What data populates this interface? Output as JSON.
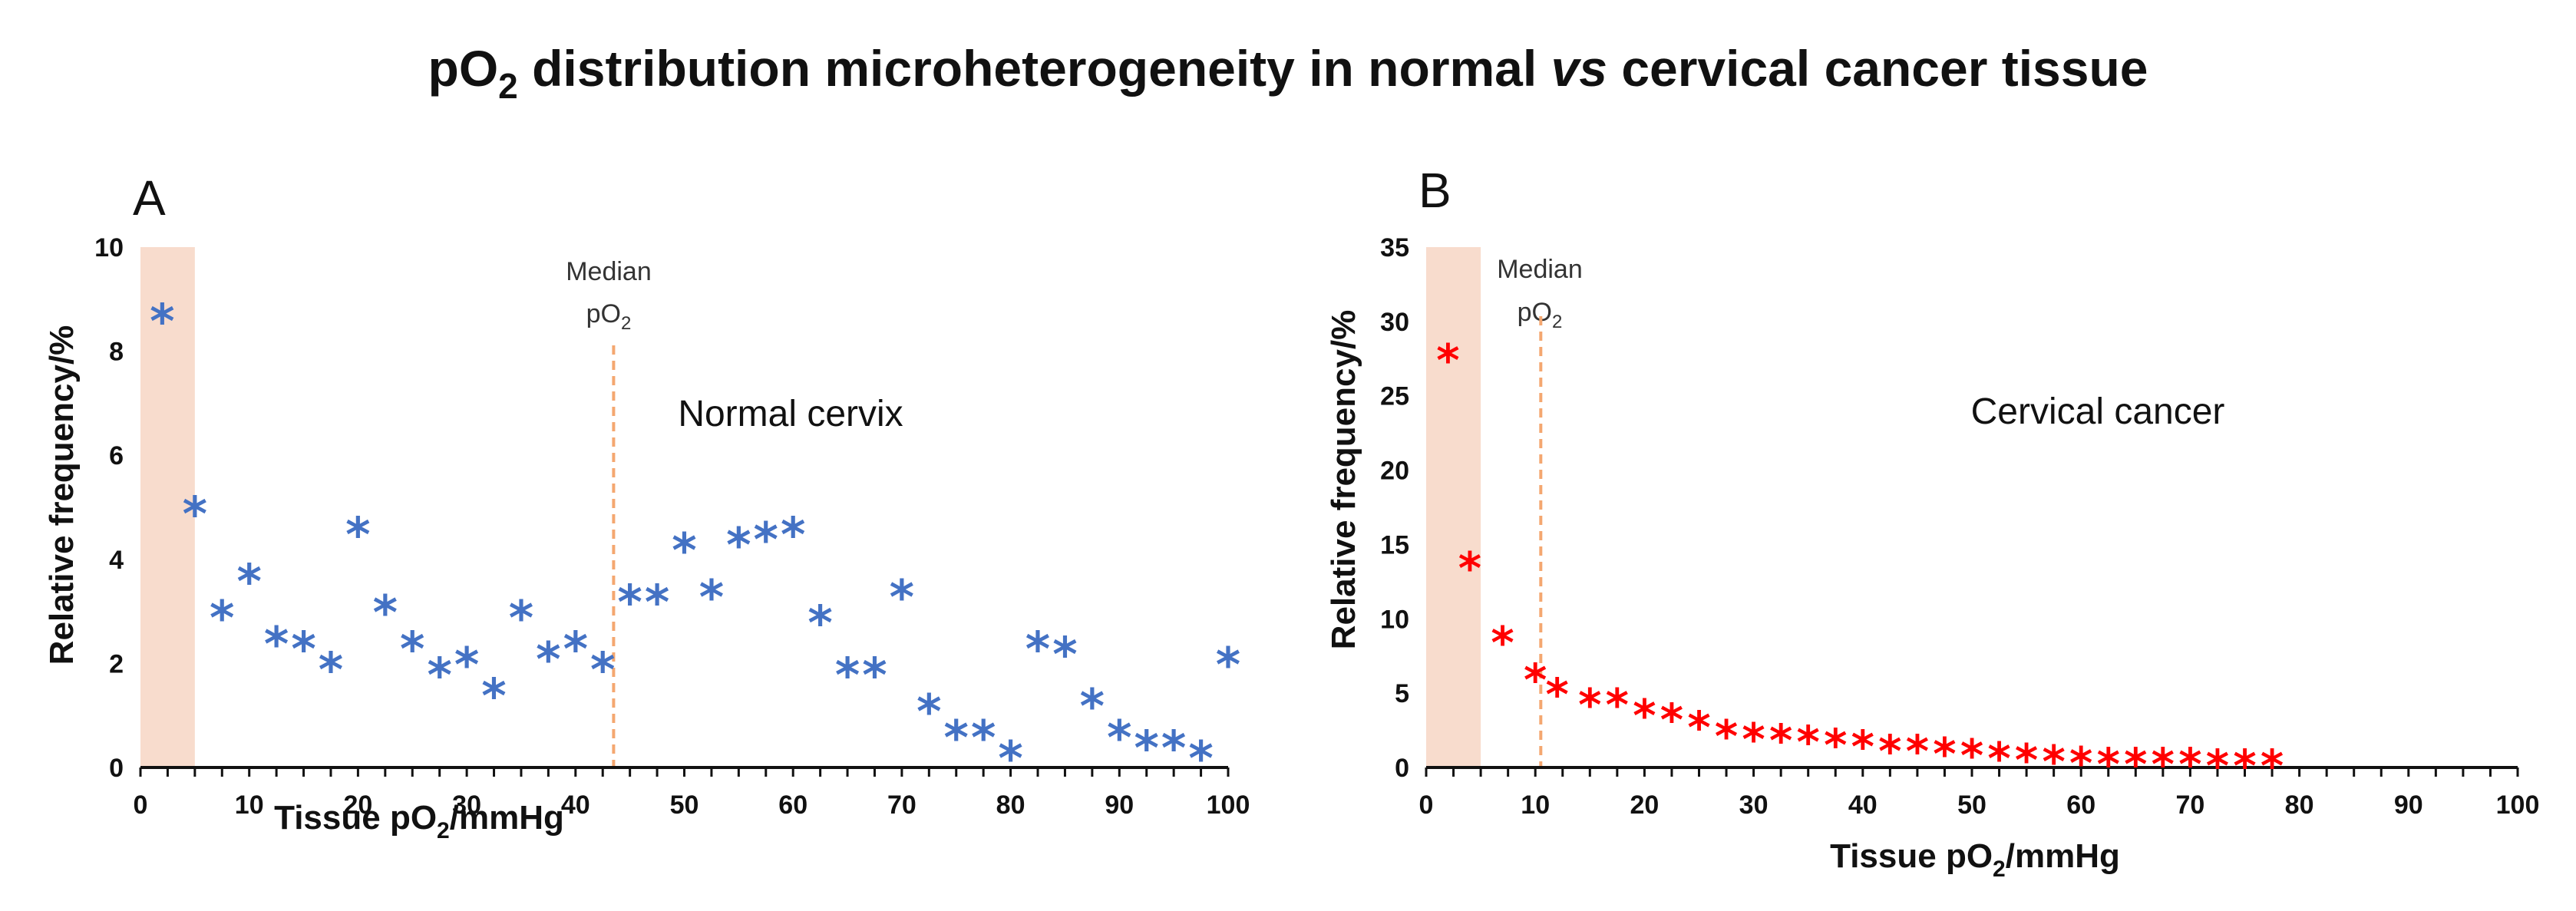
{
  "figure": {
    "title_prefix": "pO",
    "title_sub": "2",
    "title_mid": " distribution microheterogeneity in normal ",
    "title_italic": "vs",
    "title_suffix": " cervical cancer tissue"
  },
  "colors": {
    "normal": "#4472C4",
    "cancer": "#FF0000",
    "hypoxia_band": "#F8DCCD",
    "median_line": "#F4A770",
    "axis": "#111111"
  },
  "chart_data": [
    {
      "panel": "A",
      "type": "scatter",
      "series_name": "Normal cervix",
      "annotation": "Normal cervix",
      "marker": "*",
      "color": "#4472C4",
      "xlabel_prefix": "Tissue pO",
      "xlabel_sub": "2",
      "xlabel_suffix": "/mmHg",
      "ylabel": "Relative frequency/%",
      "xlim": [
        0,
        100
      ],
      "ylim": [
        0,
        10
      ],
      "xticks": [
        0,
        10,
        20,
        30,
        40,
        50,
        60,
        70,
        80,
        90,
        100
      ],
      "yticks": [
        0,
        2,
        4,
        6,
        8,
        10
      ],
      "hypoxic_band": [
        0,
        5
      ],
      "median": {
        "x": 43.5,
        "label_line1": "Median",
        "label_line2_prefix": "pO",
        "label_line2_sub": "2"
      },
      "x": [
        2,
        5,
        7.5,
        10,
        12.5,
        15,
        17.5,
        20,
        22.5,
        25,
        27.5,
        30,
        32.5,
        35,
        37.5,
        40,
        42.5,
        45,
        47.5,
        50,
        52.5,
        55,
        57.5,
        60,
        62.5,
        65,
        67.5,
        70,
        72.5,
        75,
        77.5,
        80,
        82.5,
        85,
        87.5,
        90,
        92.5,
        95,
        97.5,
        100
      ],
      "y": [
        8.6,
        4.9,
        2.9,
        3.6,
        2.4,
        2.3,
        1.9,
        4.5,
        3.0,
        2.3,
        1.8,
        2.0,
        1.4,
        2.9,
        2.1,
        2.3,
        1.9,
        3.2,
        3.2,
        4.2,
        3.3,
        4.3,
        4.4,
        4.5,
        2.8,
        1.8,
        1.8,
        3.3,
        1.1,
        0.6,
        0.6,
        0.2,
        2.3,
        2.2,
        1.2,
        0.6,
        0.4,
        0.4,
        0.2,
        2.0
      ]
    },
    {
      "panel": "B",
      "type": "scatter",
      "series_name": "Cervical cancer",
      "annotation": "Cervical cancer",
      "marker": "*",
      "color": "#FF0000",
      "xlabel_prefix": "Tissue pO",
      "xlabel_sub": "2",
      "xlabel_suffix": "/mmHg",
      "ylabel": "Relative frequency/%",
      "xlim": [
        0,
        100
      ],
      "ylim": [
        0,
        35
      ],
      "xticks": [
        0,
        10,
        20,
        30,
        40,
        50,
        60,
        70,
        80,
        90,
        100
      ],
      "yticks": [
        0,
        5,
        10,
        15,
        20,
        25,
        30,
        35
      ],
      "hypoxic_band": [
        0,
        5
      ],
      "median": {
        "x": 10.5,
        "label_line1": "Median",
        "label_line2_prefix": "pO",
        "label_line2_sub": "2"
      },
      "x": [
        2,
        4,
        7,
        10,
        12,
        15,
        17.5,
        20,
        22.5,
        25,
        27.5,
        30,
        32.5,
        35,
        37.5,
        40,
        42.5,
        45,
        47.5,
        50,
        52.5,
        55,
        57.5,
        60,
        62.5,
        65,
        67.5,
        70,
        72.5,
        75,
        77.5
      ],
      "y": [
        27.5,
        13.5,
        8.5,
        6.0,
        5.0,
        4.3,
        4.3,
        3.6,
        3.3,
        2.8,
        2.2,
        2.0,
        1.9,
        1.8,
        1.6,
        1.5,
        1.2,
        1.2,
        1.0,
        0.9,
        0.7,
        0.6,
        0.5,
        0.4,
        0.3,
        0.3,
        0.3,
        0.3,
        0.2,
        0.2,
        0.2
      ]
    }
  ]
}
